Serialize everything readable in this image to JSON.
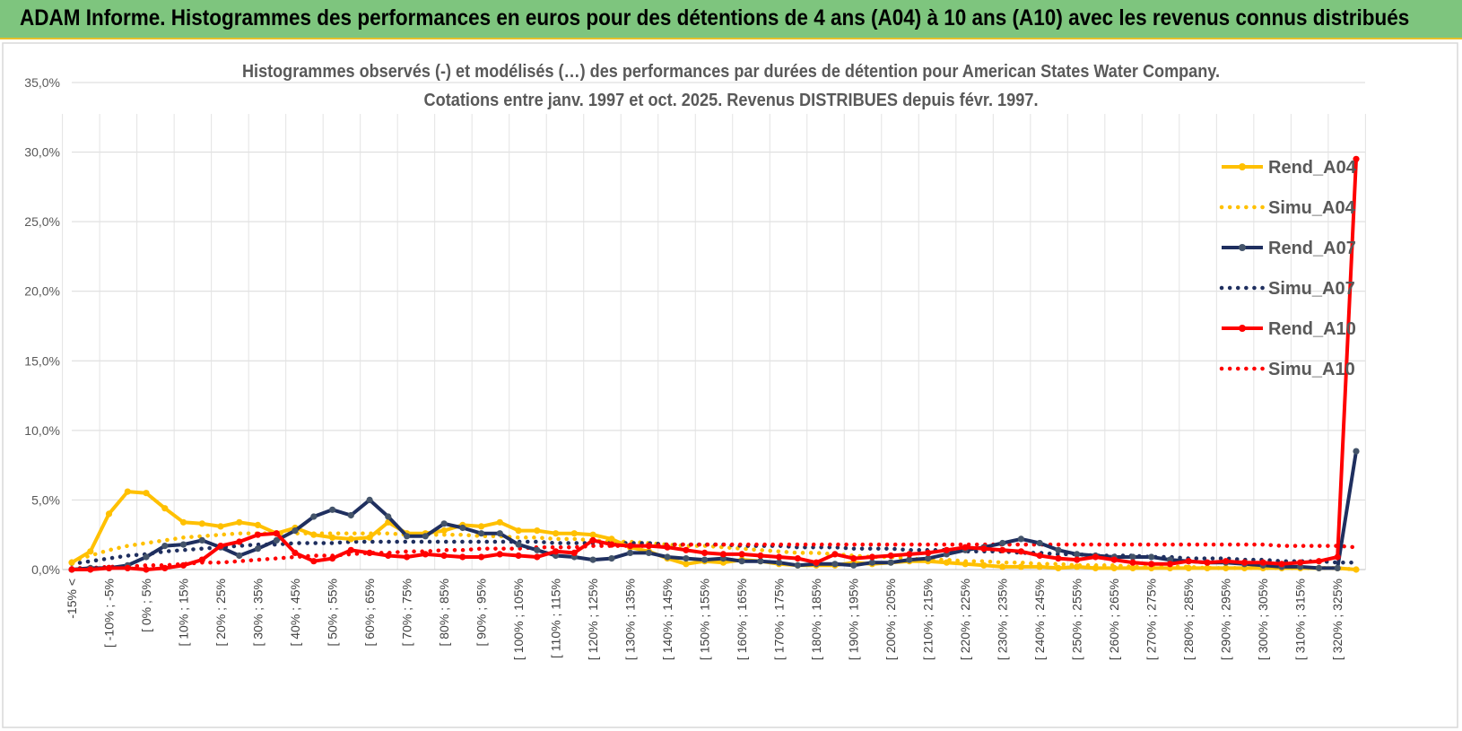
{
  "banner": {
    "title": "ADAM Informe. Histogrammes des performances en euros pour des détentions de 4 ans (A04) à 10 ans (A10) avec les revenus connus distribués"
  },
  "chart_data": {
    "type": "line",
    "title_line1": "Histogrammes observés (-) et modélisés (…) des performances par durées de détention pour American States Water Company.",
    "title_line2": "Cotations entre janv. 1997 et oct. 2025.  Revenus DISTRIBUES depuis févr. 1997.",
    "xlabel": "",
    "ylabel": "",
    "ylim": [
      0,
      35
    ],
    "yticks": [
      "0,0%",
      "5,0%",
      "10,0%",
      "15,0%",
      "20,0%",
      "25,0%",
      "30,0%",
      "35,0%"
    ],
    "xtick_labels": [
      "-15% <",
      "[ -10% ; -5%",
      "[ 0% ; 5%",
      "[ 10% ; 15%",
      "[ 20% ; 25%",
      "[ 30% ; 35%",
      "[ 40% ; 45%",
      "[ 50% ; 55%",
      "[ 60% ; 65%",
      "[ 70% ; 75%",
      "[ 80% ; 85%",
      "[ 90% ; 95%",
      "[ 100% ; 105%",
      "[ 110% ; 115%",
      "[ 120% ; 125%",
      "[ 130% ; 135%",
      "[ 140% ; 145%",
      "[ 150% ; 155%",
      "[ 160% ; 165%",
      "[ 170% ; 175%",
      "[ 180% ; 185%",
      "[ 190% ; 195%",
      "[ 200% ; 205%",
      "[ 210% ; 215%",
      "[ 220% ; 225%",
      "[ 230% ; 235%",
      "[ 240% ; 245%",
      "[ 250% ; 255%",
      "[ 260% ; 265%",
      "[ 270% ; 275%",
      "[ 280% ; 285%",
      "[ 290% ; 295%",
      "[ 300% ; 305%",
      "[ 310% ; 315%",
      "[ 320% ; 325%"
    ],
    "num_categories": 70,
    "legend_position": "right",
    "series": [
      {
        "name": "Rend_A04",
        "style": "solid-markers",
        "color": "#ffc000",
        "values": [
          0.5,
          1.3,
          4.0,
          5.6,
          5.5,
          4.4,
          3.4,
          3.3,
          3.1,
          3.4,
          3.2,
          2.6,
          3.0,
          2.5,
          2.3,
          2.2,
          2.3,
          3.4,
          2.6,
          2.6,
          2.8,
          3.2,
          3.1,
          3.4,
          2.8,
          2.8,
          2.6,
          2.6,
          2.5,
          2.2,
          1.6,
          1.3,
          0.8,
          0.4,
          0.6,
          0.5,
          0.7,
          0.6,
          0.4,
          0.3,
          0.3,
          0.3,
          0.5,
          0.4,
          0.5,
          0.6,
          0.6,
          0.5,
          0.4,
          0.3,
          0.2,
          0.2,
          0.2,
          0.1,
          0.2,
          0.1,
          0.1,
          0.1,
          0.1,
          0.1,
          0.1,
          0.1,
          0.1,
          0.1,
          0.1,
          0.1,
          0.1,
          0.1,
          0.1,
          0.0
        ]
      },
      {
        "name": "Simu_A04",
        "style": "dotted",
        "color": "#ffc000",
        "values": [
          0.6,
          1.0,
          1.4,
          1.7,
          1.9,
          2.1,
          2.3,
          2.4,
          2.5,
          2.6,
          2.6,
          2.6,
          2.6,
          2.6,
          2.6,
          2.6,
          2.6,
          2.6,
          2.5,
          2.5,
          2.5,
          2.5,
          2.4,
          2.4,
          2.3,
          2.3,
          2.2,
          2.2,
          2.1,
          2.0,
          2.0,
          1.9,
          1.8,
          1.7,
          1.7,
          1.6,
          1.5,
          1.4,
          1.3,
          1.2,
          1.2,
          1.1,
          1.0,
          0.9,
          0.9,
          0.8,
          0.7,
          0.7,
          0.6,
          0.6,
          0.5,
          0.5,
          0.4,
          0.4,
          0.3,
          0.3,
          0.3,
          0.2,
          0.2,
          0.2,
          0.2,
          0.1,
          0.1,
          0.1,
          0.1,
          0.1,
          0.1,
          0.1,
          0.1,
          0.0
        ]
      },
      {
        "name": "Rend_A07",
        "style": "solid-markers",
        "color": "#1f2f5f",
        "values": [
          0.0,
          0.1,
          0.1,
          0.3,
          0.9,
          1.7,
          1.8,
          2.1,
          1.6,
          1.0,
          1.5,
          2.1,
          2.8,
          3.8,
          4.3,
          3.9,
          5.0,
          3.8,
          2.4,
          2.4,
          3.3,
          3.0,
          2.6,
          2.6,
          1.8,
          1.4,
          1.0,
          0.9,
          0.7,
          0.8,
          1.2,
          1.2,
          0.9,
          0.8,
          0.7,
          0.8,
          0.6,
          0.6,
          0.5,
          0.3,
          0.4,
          0.4,
          0.3,
          0.5,
          0.5,
          0.7,
          0.8,
          1.1,
          1.4,
          1.6,
          1.9,
          2.2,
          1.9,
          1.4,
          1.1,
          1.0,
          0.9,
          0.9,
          0.9,
          0.7,
          0.6,
          0.5,
          0.5,
          0.4,
          0.3,
          0.2,
          0.2,
          0.1,
          0.1,
          8.5
        ]
      },
      {
        "name": "Simu_A07",
        "style": "dotted",
        "color": "#1f2f5f",
        "values": [
          0.4,
          0.6,
          0.8,
          1.0,
          1.1,
          1.3,
          1.4,
          1.5,
          1.6,
          1.7,
          1.8,
          1.8,
          1.9,
          1.9,
          1.9,
          2.0,
          2.0,
          2.0,
          2.0,
          2.0,
          2.0,
          2.0,
          2.0,
          2.0,
          2.0,
          2.0,
          1.9,
          1.9,
          1.9,
          1.9,
          1.9,
          1.9,
          1.8,
          1.8,
          1.8,
          1.8,
          1.7,
          1.7,
          1.7,
          1.6,
          1.6,
          1.6,
          1.5,
          1.5,
          1.5,
          1.4,
          1.4,
          1.4,
          1.3,
          1.3,
          1.3,
          1.2,
          1.2,
          1.1,
          1.1,
          1.0,
          1.0,
          1.0,
          0.9,
          0.9,
          0.8,
          0.8,
          0.8,
          0.7,
          0.7,
          0.6,
          0.6,
          0.6,
          0.5,
          0.5
        ]
      },
      {
        "name": "Rend_A10",
        "style": "solid-markers",
        "color": "#ff0000",
        "values": [
          0.0,
          0.0,
          0.1,
          0.1,
          0.0,
          0.1,
          0.3,
          0.7,
          1.7,
          2.0,
          2.5,
          2.6,
          1.2,
          0.6,
          0.8,
          1.4,
          1.2,
          1.0,
          0.9,
          1.1,
          1.0,
          0.9,
          0.9,
          1.1,
          1.0,
          0.9,
          1.3,
          1.2,
          2.1,
          1.8,
          1.7,
          1.7,
          1.6,
          1.4,
          1.2,
          1.1,
          1.1,
          1.0,
          0.9,
          0.8,
          0.5,
          1.1,
          0.8,
          0.9,
          1.0,
          1.1,
          1.2,
          1.4,
          1.6,
          1.5,
          1.4,
          1.3,
          1.0,
          0.8,
          0.7,
          0.9,
          0.7,
          0.5,
          0.4,
          0.4,
          0.6,
          0.5,
          0.6,
          0.5,
          0.5,
          0.4,
          0.5,
          0.6,
          0.9,
          29.5
        ]
      },
      {
        "name": "Simu_A10",
        "style": "dotted",
        "color": "#ff0000",
        "values": [
          0.1,
          0.1,
          0.2,
          0.2,
          0.3,
          0.3,
          0.4,
          0.5,
          0.5,
          0.6,
          0.7,
          0.8,
          0.9,
          1.0,
          1.0,
          1.1,
          1.2,
          1.2,
          1.3,
          1.3,
          1.4,
          1.4,
          1.5,
          1.5,
          1.5,
          1.6,
          1.6,
          1.6,
          1.7,
          1.7,
          1.7,
          1.7,
          1.8,
          1.8,
          1.8,
          1.8,
          1.8,
          1.8,
          1.8,
          1.8,
          1.8,
          1.8,
          1.8,
          1.8,
          1.8,
          1.8,
          1.8,
          1.8,
          1.8,
          1.8,
          1.8,
          1.8,
          1.8,
          1.8,
          1.8,
          1.8,
          1.8,
          1.8,
          1.8,
          1.8,
          1.8,
          1.8,
          1.8,
          1.8,
          1.8,
          1.7,
          1.7,
          1.7,
          1.7,
          1.6
        ]
      }
    ]
  }
}
